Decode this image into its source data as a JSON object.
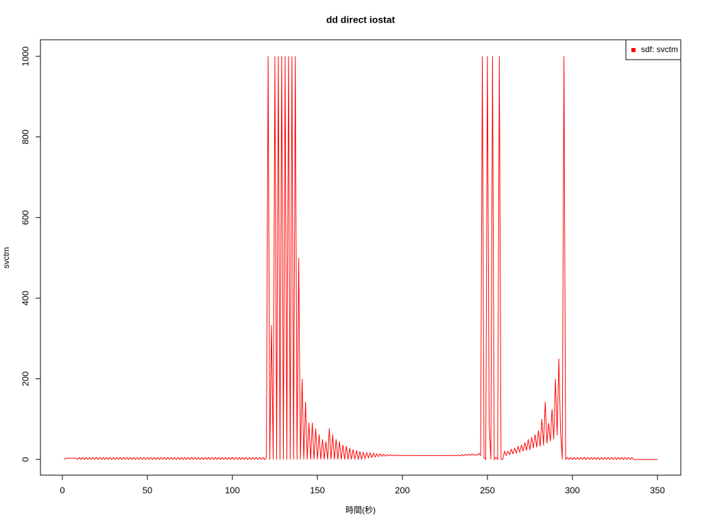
{
  "chart_data": {
    "type": "line",
    "title": "dd direct iostat",
    "x_label": "時間(秒)",
    "y_label": "svctm",
    "legend": "topright",
    "xlim": [
      -12.9,
      363.7
    ],
    "ylim": [
      -39,
      1041
    ],
    "xticks": [
      0,
      50,
      100,
      150,
      200,
      250,
      300,
      350
    ],
    "yticks": [
      0,
      200,
      400,
      600,
      800,
      1000
    ],
    "x": [
      1,
      2,
      3,
      4,
      5,
      6,
      7,
      8,
      9,
      10,
      11,
      12,
      13,
      14,
      15,
      16,
      17,
      18,
      19,
      20,
      21,
      22,
      23,
      24,
      25,
      26,
      27,
      28,
      29,
      30,
      31,
      32,
      33,
      34,
      35,
      36,
      37,
      38,
      39,
      40,
      41,
      42,
      43,
      44,
      45,
      46,
      47,
      48,
      49,
      50,
      51,
      52,
      53,
      54,
      55,
      56,
      57,
      58,
      59,
      60,
      61,
      62,
      63,
      64,
      65,
      66,
      67,
      68,
      69,
      70,
      71,
      72,
      73,
      74,
      75,
      76,
      77,
      78,
      79,
      80,
      81,
      82,
      83,
      84,
      85,
      86,
      87,
      88,
      89,
      90,
      91,
      92,
      93,
      94,
      95,
      96,
      97,
      98,
      99,
      100,
      101,
      102,
      103,
      104,
      105,
      106,
      107,
      108,
      109,
      110,
      111,
      112,
      113,
      114,
      115,
      116,
      117,
      118,
      119,
      120,
      121,
      122,
      123,
      124,
      125,
      126,
      127,
      128,
      129,
      130,
      131,
      132,
      133,
      134,
      135,
      136,
      137,
      138,
      139,
      140,
      141,
      142,
      143,
      144,
      145,
      146,
      147,
      148,
      149,
      150,
      151,
      152,
      153,
      154,
      155,
      156,
      157,
      158,
      159,
      160,
      161,
      162,
      163,
      164,
      165,
      166,
      167,
      168,
      169,
      170,
      171,
      172,
      173,
      174,
      175,
      176,
      177,
      178,
      179,
      180,
      181,
      182,
      183,
      184,
      185,
      186,
      187,
      188,
      189,
      190,
      191,
      192,
      193,
      194,
      195,
      196,
      197,
      198,
      199,
      200,
      201,
      202,
      203,
      204,
      205,
      206,
      207,
      208,
      209,
      210,
      211,
      212,
      213,
      214,
      215,
      216,
      217,
      218,
      219,
      220,
      221,
      222,
      223,
      224,
      225,
      226,
      227,
      228,
      229,
      230,
      231,
      232,
      233,
      234,
      235,
      236,
      237,
      238,
      239,
      240,
      241,
      242,
      243,
      244,
      245,
      246,
      247,
      248,
      249,
      250,
      251,
      252,
      253,
      254,
      255,
      256,
      257,
      258,
      259,
      260,
      261,
      262,
      263,
      264,
      265,
      266,
      267,
      268,
      269,
      270,
      271,
      272,
      273,
      274,
      275,
      276,
      277,
      278,
      279,
      280,
      281,
      282,
      283,
      284,
      285,
      286,
      287,
      288,
      289,
      290,
      291,
      292,
      293,
      294,
      295,
      296,
      297,
      298,
      299,
      300,
      301,
      302,
      303,
      304,
      305,
      306,
      307,
      308,
      309,
      310,
      311,
      312,
      313,
      314,
      315,
      316,
      317,
      318,
      319,
      320,
      321,
      322,
      323,
      324,
      325,
      326,
      327,
      328,
      329,
      330,
      331,
      332,
      333,
      334,
      335,
      336,
      337,
      338,
      339,
      340,
      341,
      342,
      343,
      344,
      345,
      346,
      347,
      348,
      349,
      350
    ],
    "series": [
      {
        "name": "sdf: svctm",
        "color": "#ff0000",
        "values": [
          0,
          3,
          3,
          3,
          3,
          3,
          3,
          3,
          0,
          5,
          0,
          5,
          0,
          5,
          0,
          5,
          0,
          5,
          0,
          5,
          0,
          5,
          0,
          5,
          0,
          5,
          0,
          5,
          0,
          5,
          0,
          5,
          0,
          5,
          0,
          5,
          0,
          5,
          0,
          5,
          0,
          5,
          0,
          5,
          0,
          5,
          0,
          5,
          0,
          5,
          0,
          5,
          0,
          5,
          0,
          5,
          0,
          5,
          0,
          5,
          0,
          5,
          0,
          5,
          0,
          5,
          0,
          5,
          0,
          5,
          0,
          5,
          0,
          5,
          0,
          5,
          0,
          5,
          0,
          5,
          0,
          5,
          0,
          5,
          0,
          5,
          0,
          5,
          0,
          5,
          0,
          5,
          0,
          5,
          0,
          5,
          0,
          5,
          0,
          5,
          0,
          5,
          0,
          5,
          0,
          5,
          0,
          5,
          0,
          5,
          0,
          5,
          0,
          5,
          0,
          5,
          0,
          5,
          0,
          5,
          1000,
          0,
          333,
          0,
          1000,
          0,
          1000,
          0,
          1000,
          0,
          1000,
          0,
          1000,
          0,
          1000,
          0,
          1000,
          0,
          500,
          0,
          200,
          0,
          143,
          0,
          91,
          0,
          91,
          0,
          77,
          0,
          62,
          0,
          50,
          0,
          45,
          0,
          77,
          0,
          62,
          0,
          50,
          0,
          45,
          0,
          36,
          0,
          33,
          0,
          28,
          0,
          25,
          0,
          22,
          0,
          20,
          0,
          18,
          2,
          17,
          4,
          16,
          5,
          15,
          6,
          14,
          7,
          14,
          8,
          13,
          8,
          12,
          9,
          12,
          9,
          11,
          9,
          11,
          9,
          10,
          9,
          10,
          9,
          10,
          9,
          10,
          9,
          10,
          9,
          10,
          9,
          10,
          9,
          10,
          9,
          10,
          9,
          10,
          9,
          10,
          9,
          10,
          9,
          10,
          9,
          10,
          9,
          10,
          9,
          10,
          9,
          10,
          9,
          11,
          9,
          12,
          9,
          12,
          10,
          13,
          10,
          14,
          10,
          12,
          10,
          15,
          10,
          1000,
          5,
          0,
          1000,
          90,
          0,
          1000,
          0,
          5,
          0,
          1000,
          0,
          0,
          20,
          10,
          20,
          12,
          25,
          14,
          28,
          16,
          32,
          18,
          36,
          20,
          42,
          22,
          50,
          24,
          55,
          28,
          62,
          30,
          72,
          32,
          100,
          35,
          143,
          40,
          90,
          45,
          125,
          50,
          200,
          60,
          250,
          70,
          0,
          1000,
          0,
          5,
          0,
          5,
          0,
          5,
          0,
          5,
          0,
          5,
          0,
          5,
          0,
          5,
          0,
          5,
          0,
          5,
          0,
          5,
          0,
          5,
          0,
          5,
          0,
          5,
          0,
          5,
          0,
          5,
          0,
          5,
          0,
          5,
          0,
          5,
          0,
          5,
          0,
          5,
          0,
          0,
          0,
          0,
          0,
          0,
          0,
          0,
          0,
          0,
          0,
          0,
          0,
          0,
          0
        ]
      }
    ]
  }
}
